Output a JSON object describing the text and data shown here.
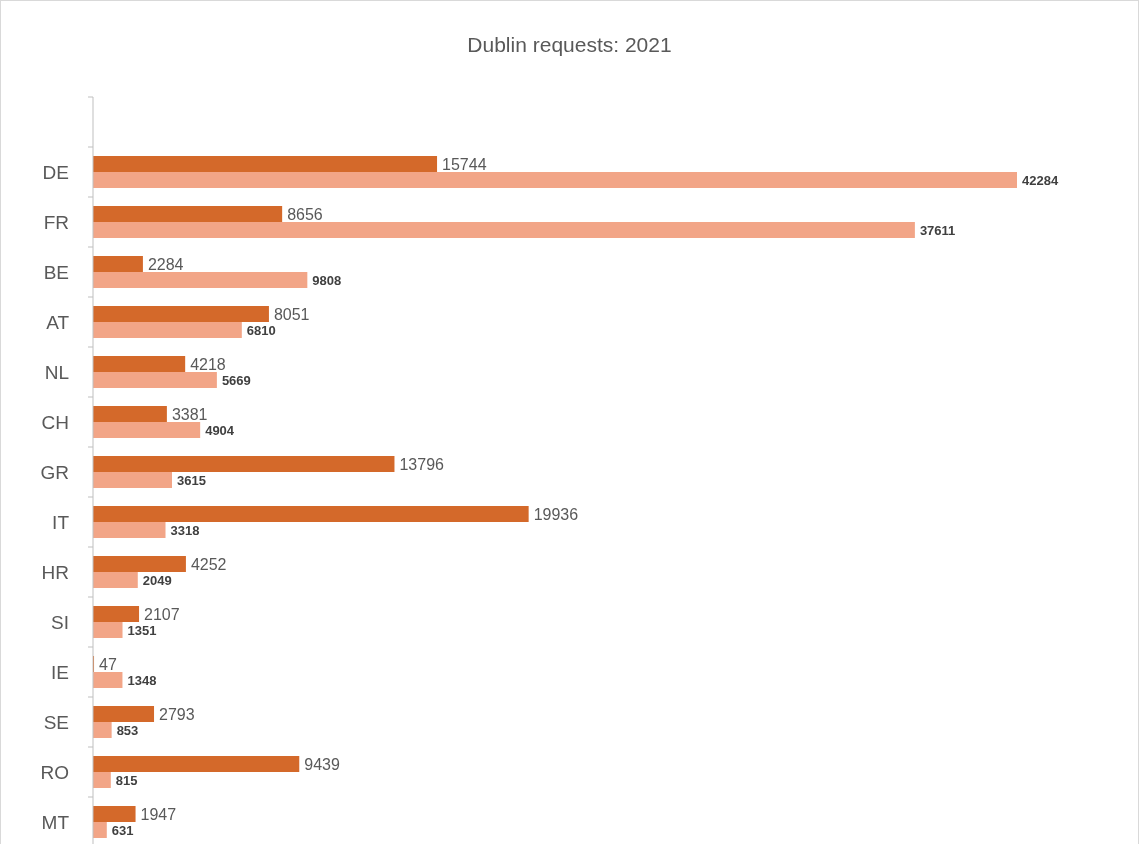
{
  "chart_data": {
    "type": "bar",
    "orientation": "horizontal",
    "title": "Dublin requests: 2021",
    "categories": [
      "DE",
      "FR",
      "BE",
      "AT",
      "NL",
      "CH",
      "GR",
      "IT",
      "HR",
      "SI",
      "IE",
      "SE",
      "RO",
      "MT"
    ],
    "series": [
      {
        "color": "#d4692a",
        "values": [
          15744,
          8656,
          2284,
          8051,
          4218,
          3381,
          13796,
          19936,
          4252,
          2107,
          47,
          2793,
          9439,
          1947
        ]
      },
      {
        "color": "#f2a587",
        "values": [
          42284,
          37611,
          9808,
          6810,
          5669,
          4904,
          3615,
          3318,
          2049,
          1351,
          1348,
          853,
          815,
          631
        ]
      }
    ],
    "data_labels": true
  }
}
